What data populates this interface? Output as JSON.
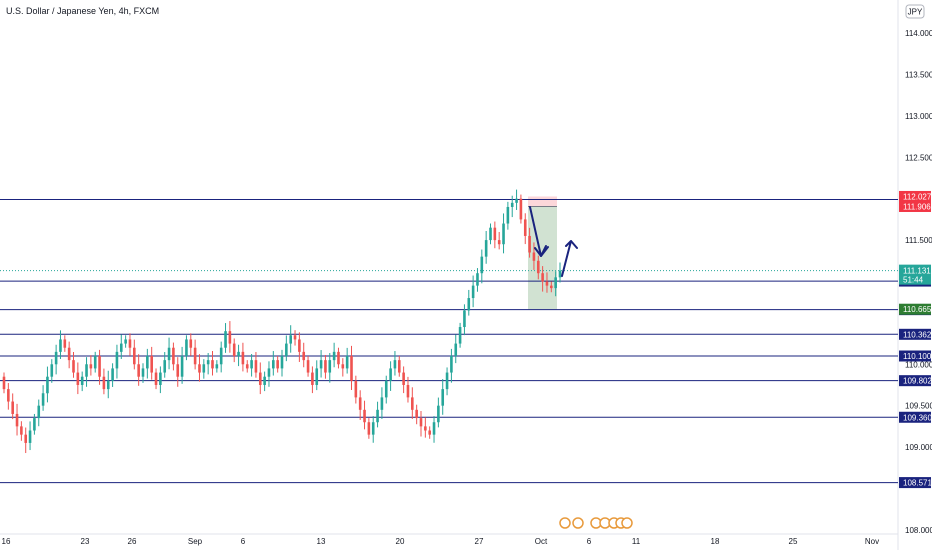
{
  "header": {
    "title": "U.S. Dollar / Japanese Yen, 4h, FXCM",
    "currency": "JPY"
  },
  "colors": {
    "up": "#26a69a",
    "down": "#ef5350",
    "level": "#1a237e",
    "level_label": "#1a237e",
    "price_line": "#26a69a",
    "target": "#2e7d32",
    "stop": "#f23645",
    "arrow": "#1a237e"
  },
  "chart_data": {
    "type": "candlestick",
    "ylim": [
      107.95,
      114.4
    ],
    "yticks": [
      "114.000",
      "113.500",
      "113.000",
      "112.500",
      "111.500",
      "110.000",
      "109.500",
      "109.000",
      "108.000"
    ],
    "xlabels": [
      "16",
      "23",
      "26",
      "Sep",
      "6",
      "13",
      "20",
      "27",
      "Oct",
      "6",
      "11",
      "18",
      "25",
      "Nov"
    ],
    "levels": [
      {
        "value": 111.991,
        "label": "111.991"
      },
      {
        "value": 111.005,
        "label": "111.005"
      },
      {
        "value": 110.66,
        "label": "110.660"
      },
      {
        "value": 110.362,
        "label": "110.362"
      },
      {
        "value": 110.1,
        "label": "110.100"
      },
      {
        "value": 109.802,
        "label": "109.802"
      },
      {
        "value": 109.36,
        "label": "109.360"
      },
      {
        "value": 108.571,
        "label": "108.571"
      }
    ],
    "position": {
      "entry": 111.906,
      "stop": 112.027,
      "target": 110.665,
      "entry_label": "111.906",
      "stop_label": "112.027",
      "target_label": "110.665"
    },
    "last_price": {
      "value": 111.131,
      "label": "111.131",
      "countdown": "51:44"
    },
    "closes": [
      109.7,
      109.55,
      109.4,
      109.25,
      109.15,
      109.05,
      109.2,
      109.35,
      109.5,
      109.65,
      109.85,
      110.0,
      110.15,
      110.3,
      110.2,
      110.05,
      109.9,
      109.75,
      109.85,
      110.0,
      109.95,
      110.1,
      109.85,
      109.7,
      109.8,
      109.95,
      110.15,
      110.25,
      110.3,
      110.2,
      110.0,
      109.85,
      109.95,
      110.1,
      109.9,
      109.75,
      109.9,
      110.05,
      110.2,
      110.0,
      109.85,
      110.1,
      110.3,
      110.2,
      110.0,
      109.9,
      110.0,
      110.05,
      109.95,
      110.0,
      110.2,
      110.4,
      110.25,
      110.1,
      110.15,
      110.0,
      109.95,
      110.05,
      109.9,
      109.75,
      109.85,
      109.95,
      110.05,
      109.95,
      110.1,
      110.25,
      110.35,
      110.3,
      110.15,
      110.05,
      109.9,
      109.75,
      109.95,
      110.05,
      109.9,
      110.05,
      110.15,
      110.0,
      109.95,
      110.1,
      109.8,
      109.6,
      109.45,
      109.3,
      109.15,
      109.3,
      109.45,
      109.6,
      109.8,
      109.95,
      110.05,
      109.9,
      109.75,
      109.6,
      109.45,
      109.35,
      109.25,
      109.2,
      109.15,
      109.3,
      109.5,
      109.7,
      109.9,
      110.1,
      110.25,
      110.45,
      110.65,
      110.8,
      110.95,
      111.1,
      111.3,
      111.5,
      111.65,
      111.5,
      111.45,
      111.7,
      111.9,
      111.95,
      112.0,
      111.75,
      111.55,
      111.35,
      111.25,
      111.1,
      111.0,
      110.95,
      110.92,
      111.05,
      111.131
    ]
  }
}
